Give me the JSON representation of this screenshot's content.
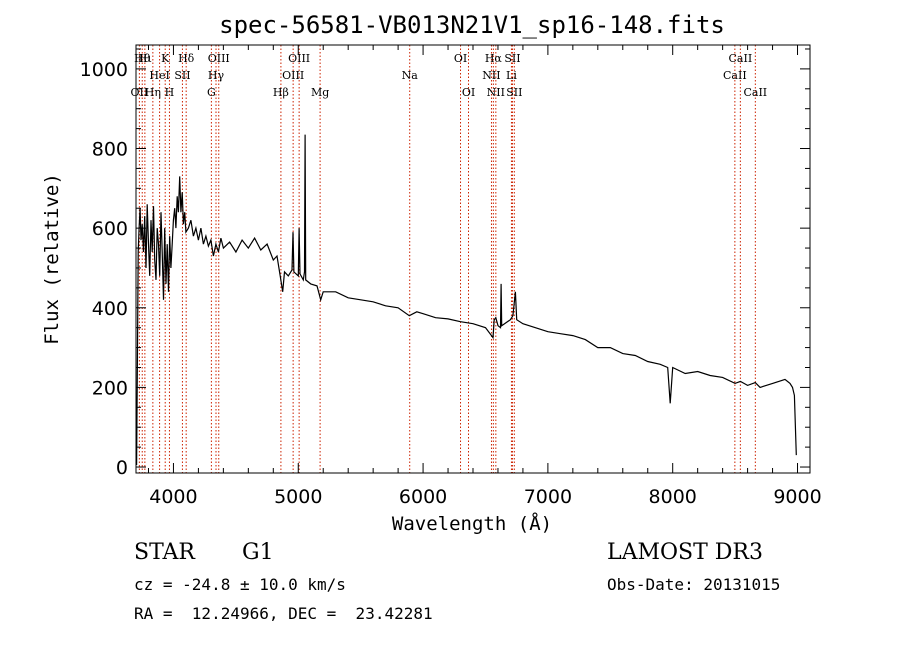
{
  "chart_data": {
    "type": "line",
    "title": "spec-56581-VB013N21V1_sp16-148.fits",
    "xlabel": "Wavelength (Å)",
    "ylabel": "Flux (relative)",
    "xlim": [
      3700,
      9100
    ],
    "ylim": [
      -15,
      1060
    ],
    "xticks": [
      4000,
      5000,
      6000,
      7000,
      8000,
      9000
    ],
    "yticks": [
      0,
      200,
      400,
      600,
      800,
      1000
    ],
    "spectrum": [
      [
        3705,
        5
      ],
      [
        3712,
        300
      ],
      [
        3718,
        540
      ],
      [
        3725,
        600
      ],
      [
        3733,
        650
      ],
      [
        3740,
        570
      ],
      [
        3750,
        610
      ],
      [
        3760,
        540
      ],
      [
        3770,
        630
      ],
      [
        3780,
        500
      ],
      [
        3790,
        660
      ],
      [
        3800,
        560
      ],
      [
        3810,
        480
      ],
      [
        3820,
        620
      ],
      [
        3830,
        540
      ],
      [
        3840,
        655
      ],
      [
        3850,
        520
      ],
      [
        3860,
        470
      ],
      [
        3870,
        600
      ],
      [
        3880,
        560
      ],
      [
        3890,
        480
      ],
      [
        3900,
        640
      ],
      [
        3910,
        540
      ],
      [
        3920,
        420
      ],
      [
        3930,
        600
      ],
      [
        3940,
        460
      ],
      [
        3950,
        560
      ],
      [
        3960,
        440
      ],
      [
        3970,
        580
      ],
      [
        3980,
        500
      ],
      [
        3990,
        560
      ],
      [
        4000,
        620
      ],
      [
        4010,
        650
      ],
      [
        4020,
        600
      ],
      [
        4030,
        680
      ],
      [
        4040,
        640
      ],
      [
        4050,
        730
      ],
      [
        4060,
        640
      ],
      [
        4070,
        690
      ],
      [
        4080,
        610
      ],
      [
        4090,
        640
      ],
      [
        4100,
        590
      ],
      [
        4120,
        600
      ],
      [
        4140,
        620
      ],
      [
        4160,
        580
      ],
      [
        4180,
        600
      ],
      [
        4200,
        570
      ],
      [
        4220,
        600
      ],
      [
        4240,
        560
      ],
      [
        4260,
        580
      ],
      [
        4280,
        555
      ],
      [
        4300,
        570
      ],
      [
        4320,
        530
      ],
      [
        4340,
        560
      ],
      [
        4360,
        540
      ],
      [
        4380,
        575
      ],
      [
        4400,
        550
      ],
      [
        4450,
        565
      ],
      [
        4500,
        540
      ],
      [
        4550,
        570
      ],
      [
        4600,
        550
      ],
      [
        4650,
        575
      ],
      [
        4700,
        545
      ],
      [
        4750,
        560
      ],
      [
        4800,
        520
      ],
      [
        4830,
        530
      ],
      [
        4855,
        480
      ],
      [
        4875,
        440
      ],
      [
        4890,
        490
      ],
      [
        4920,
        480
      ],
      [
        4950,
        495
      ],
      [
        4958,
        590
      ],
      [
        4965,
        490
      ],
      [
        5000,
        480
      ],
      [
        5007,
        600
      ],
      [
        5014,
        485
      ],
      [
        5040,
        470
      ],
      [
        5050,
        490
      ],
      [
        5055,
        835
      ],
      [
        5060,
        470
      ],
      [
        5100,
        460
      ],
      [
        5150,
        455
      ],
      [
        5180,
        420
      ],
      [
        5200,
        440
      ],
      [
        5300,
        440
      ],
      [
        5400,
        425
      ],
      [
        5500,
        420
      ],
      [
        5600,
        415
      ],
      [
        5700,
        405
      ],
      [
        5800,
        400
      ],
      [
        5890,
        380
      ],
      [
        5950,
        390
      ],
      [
        6000,
        385
      ],
      [
        6100,
        375
      ],
      [
        6200,
        372
      ],
      [
        6300,
        365
      ],
      [
        6400,
        360
      ],
      [
        6500,
        350
      ],
      [
        6560,
        325
      ],
      [
        6570,
        370
      ],
      [
        6583,
        375
      ],
      [
        6600,
        355
      ],
      [
        6620,
        350
      ],
      [
        6625,
        460
      ],
      [
        6630,
        355
      ],
      [
        6700,
        370
      ],
      [
        6720,
        380
      ],
      [
        6740,
        440
      ],
      [
        6750,
        370
      ],
      [
        6800,
        360
      ],
      [
        6900,
        350
      ],
      [
        7000,
        340
      ],
      [
        7100,
        335
      ],
      [
        7200,
        330
      ],
      [
        7300,
        320
      ],
      [
        7400,
        300
      ],
      [
        7500,
        300
      ],
      [
        7600,
        285
      ],
      [
        7700,
        280
      ],
      [
        7800,
        265
      ],
      [
        7900,
        258
      ],
      [
        7960,
        250
      ],
      [
        7980,
        160
      ],
      [
        8000,
        250
      ],
      [
        8100,
        235
      ],
      [
        8200,
        240
      ],
      [
        8300,
        230
      ],
      [
        8400,
        225
      ],
      [
        8500,
        210
      ],
      [
        8542,
        215
      ],
      [
        8600,
        205
      ],
      [
        8662,
        212
      ],
      [
        8700,
        200
      ],
      [
        8800,
        210
      ],
      [
        8850,
        215
      ],
      [
        8900,
        220
      ],
      [
        8940,
        210
      ],
      [
        8960,
        200
      ],
      [
        8975,
        180
      ],
      [
        8990,
        30
      ]
    ],
    "lines": [
      {
        "wavelength": 3727,
        "label": "OII",
        "row": 2
      },
      {
        "wavelength": 3750,
        "label": "Hθ",
        "row": 0
      },
      {
        "wavelength": 3771,
        "label": "Hι",
        "row": 0
      },
      {
        "wavelength": 3835,
        "label": "Hη",
        "row": 2
      },
      {
        "wavelength": 3889,
        "label": "HeI",
        "row": 1
      },
      {
        "wavelength": 3934,
        "label": "K",
        "row": 0
      },
      {
        "wavelength": 3968,
        "label": "H",
        "row": 2
      },
      {
        "wavelength": 4072,
        "label": "SII",
        "row": 1
      },
      {
        "wavelength": 4102,
        "label": "Hδ",
        "row": 0
      },
      {
        "wavelength": 4304,
        "label": "G",
        "row": 2
      },
      {
        "wavelength": 4341,
        "label": "Hγ",
        "row": 1
      },
      {
        "wavelength": 4363,
        "label": "OIII",
        "row": 0
      },
      {
        "wavelength": 4861,
        "label": "Hβ",
        "row": 2
      },
      {
        "wavelength": 4959,
        "label": "OIII",
        "row": 1
      },
      {
        "wavelength": 5007,
        "label": "OIII",
        "row": 0
      },
      {
        "wavelength": 5175,
        "label": "Mg",
        "row": 2
      },
      {
        "wavelength": 5893,
        "label": "Na",
        "row": 1
      },
      {
        "wavelength": 6300,
        "label": "OI",
        "row": 0
      },
      {
        "wavelength": 6364,
        "label": "OI",
        "row": 2
      },
      {
        "wavelength": 6548,
        "label": "NII",
        "row": 1
      },
      {
        "wavelength": 6563,
        "label": "Hα",
        "row": 0
      },
      {
        "wavelength": 6583,
        "label": "NII",
        "row": 2
      },
      {
        "wavelength": 6708,
        "label": "Li",
        "row": 1
      },
      {
        "wavelength": 6716,
        "label": "SII",
        "row": 0
      },
      {
        "wavelength": 6731,
        "label": "SII",
        "row": 2
      },
      {
        "wavelength": 8498,
        "label": "CaII",
        "row": 1
      },
      {
        "wavelength": 8542,
        "label": "CaII",
        "row": 0
      },
      {
        "wavelength": 8662,
        "label": "CaII",
        "row": 2
      }
    ]
  },
  "info": {
    "object_class": "STAR",
    "subclass": "G1",
    "survey": "LAMOST DR3",
    "cz": "cz = -24.8 ± 10.0 km/s",
    "obs_date": "Obs-Date: 20131015",
    "coords": "RA =  12.24966, DEC =  23.42281"
  },
  "colors": {
    "line_marker": "#cc2200",
    "spectrum": "#000000"
  }
}
